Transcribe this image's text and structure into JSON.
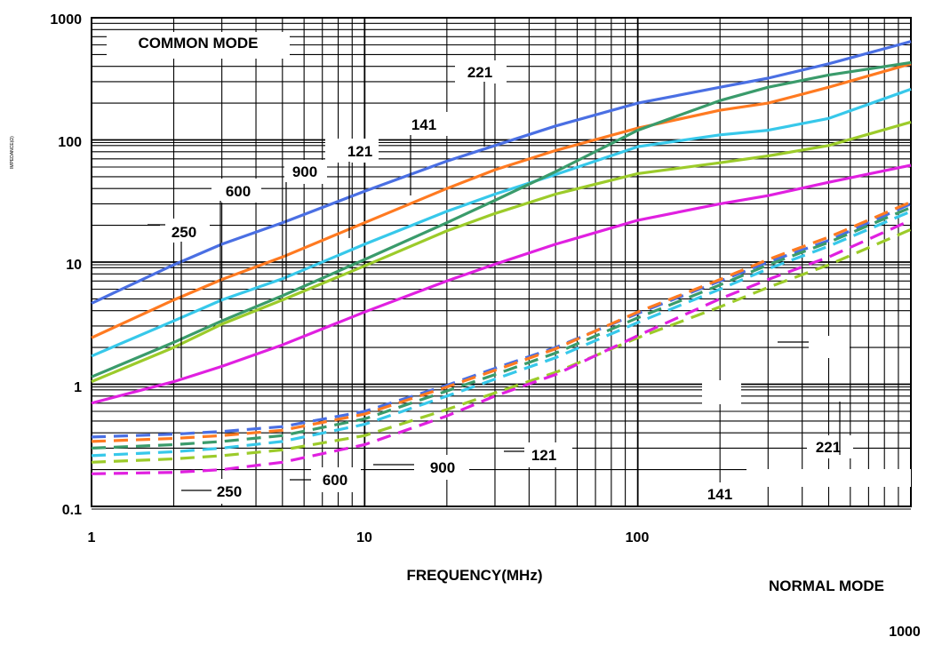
{
  "chart_data": {
    "type": "line",
    "xlabel": "FREQUENCY(MHz)",
    "ylabel": "IMPEDANCE(Ω)",
    "xscale": "log",
    "yscale": "log",
    "xlim": [
      1,
      1000
    ],
    "ylim": [
      0.1,
      1000
    ],
    "x_ticks": [
      "1",
      "10",
      "100",
      "1000"
    ],
    "y_ticks": [
      "0.1",
      "1",
      "10",
      "100",
      "1000"
    ],
    "grid": true,
    "mode_labels": {
      "common": "COMMON MODE",
      "normal": "NORMAL MODE"
    },
    "series": [
      {
        "name": "221",
        "mode": "common",
        "color": "#4a6fe3",
        "x": [
          1,
          2,
          3,
          5,
          10,
          20,
          30,
          50,
          100,
          200,
          300,
          500,
          1000
        ],
        "y": [
          4.6,
          9.5,
          14,
          21,
          38,
          67,
          90,
          130,
          200,
          270,
          320,
          420,
          640
        ]
      },
      {
        "name": "141",
        "mode": "common",
        "color": "#ff7a21",
        "x": [
          1,
          2,
          3,
          5,
          10,
          20,
          30,
          50,
          100,
          200,
          300,
          500,
          1000
        ],
        "y": [
          2.4,
          4.9,
          7.2,
          11,
          21,
          40,
          57,
          82,
          125,
          175,
          200,
          270,
          420
        ]
      },
      {
        "name": "121",
        "mode": "common",
        "color": "#37c8ea",
        "x": [
          1,
          2,
          3,
          5,
          10,
          20,
          30,
          50,
          100,
          200,
          300,
          500,
          1000
        ],
        "y": [
          1.7,
          3.3,
          4.9,
          7.3,
          14,
          26,
          36,
          52,
          88,
          110,
          120,
          150,
          260
        ]
      },
      {
        "name": "900",
        "mode": "common",
        "color": "#3a9b6b",
        "x": [
          1,
          2,
          3,
          5,
          10,
          20,
          30,
          50,
          100,
          200,
          300,
          500,
          1000
        ],
        "y": [
          1.15,
          2.2,
          3.3,
          5.3,
          10.5,
          21,
          32,
          55,
          120,
          210,
          270,
          340,
          430
        ]
      },
      {
        "name": "600",
        "mode": "common",
        "color": "#9ccb2a",
        "x": [
          1,
          2,
          3,
          5,
          10,
          20,
          30,
          50,
          100,
          200,
          300,
          500,
          1000
        ],
        "y": [
          1.05,
          2,
          3.1,
          4.9,
          9.3,
          18,
          25,
          36,
          53,
          65,
          74,
          90,
          140
        ]
      },
      {
        "name": "250",
        "mode": "common",
        "color": "#e020e0",
        "x": [
          1,
          2,
          3,
          5,
          10,
          20,
          30,
          50,
          100,
          200,
          300,
          500,
          1000
        ],
        "y": [
          0.7,
          1.05,
          1.4,
          2.1,
          3.9,
          7,
          9.6,
          14,
          22,
          30,
          35,
          45,
          62
        ]
      },
      {
        "name": "221",
        "mode": "normal",
        "color": "#4a6fe3",
        "x": [
          1,
          2,
          3,
          5,
          10,
          20,
          30,
          50,
          100,
          200,
          300,
          500,
          1000
        ],
        "y": [
          0.37,
          0.39,
          0.41,
          0.45,
          0.6,
          0.98,
          1.35,
          2.0,
          3.8,
          7.0,
          10,
          15,
          30
        ]
      },
      {
        "name": "141",
        "mode": "normal",
        "color": "#ff7a21",
        "x": [
          1,
          2,
          3,
          5,
          10,
          20,
          30,
          50,
          100,
          200,
          300,
          500,
          1000
        ],
        "y": [
          0.34,
          0.36,
          0.38,
          0.42,
          0.57,
          0.95,
          1.3,
          1.95,
          3.9,
          7.2,
          10.5,
          16,
          31
        ]
      },
      {
        "name": "121",
        "mode": "normal",
        "color": "#37c8ea",
        "x": [
          1,
          2,
          3,
          5,
          10,
          20,
          30,
          50,
          100,
          200,
          300,
          500,
          1000
        ],
        "y": [
          0.26,
          0.28,
          0.3,
          0.34,
          0.47,
          0.8,
          1.1,
          1.65,
          3.2,
          6.0,
          8.8,
          13.5,
          26
        ]
      },
      {
        "name": "900",
        "mode": "normal",
        "color": "#3a9b6b",
        "x": [
          1,
          2,
          3,
          5,
          10,
          20,
          30,
          50,
          100,
          200,
          300,
          500,
          1000
        ],
        "y": [
          0.3,
          0.32,
          0.34,
          0.38,
          0.52,
          0.88,
          1.2,
          1.8,
          3.5,
          6.5,
          9.5,
          14.5,
          28
        ]
      },
      {
        "name": "600",
        "mode": "normal",
        "color": "#9ccb2a",
        "x": [
          1,
          2,
          3,
          5,
          10,
          20,
          30,
          50,
          100,
          200,
          300,
          500,
          1000
        ],
        "y": [
          0.23,
          0.245,
          0.26,
          0.29,
          0.38,
          0.62,
          0.85,
          1.25,
          2.4,
          4.3,
          6.2,
          9.5,
          18.5
        ]
      },
      {
        "name": "250",
        "mode": "normal",
        "color": "#e020e0",
        "x": [
          1,
          2,
          3,
          5,
          10,
          20,
          30,
          50,
          100,
          200,
          300,
          500,
          1000
        ],
        "y": [
          0.185,
          0.19,
          0.2,
          0.23,
          0.32,
          0.55,
          0.8,
          1.2,
          2.5,
          5.0,
          7.2,
          11,
          22
        ]
      }
    ]
  }
}
